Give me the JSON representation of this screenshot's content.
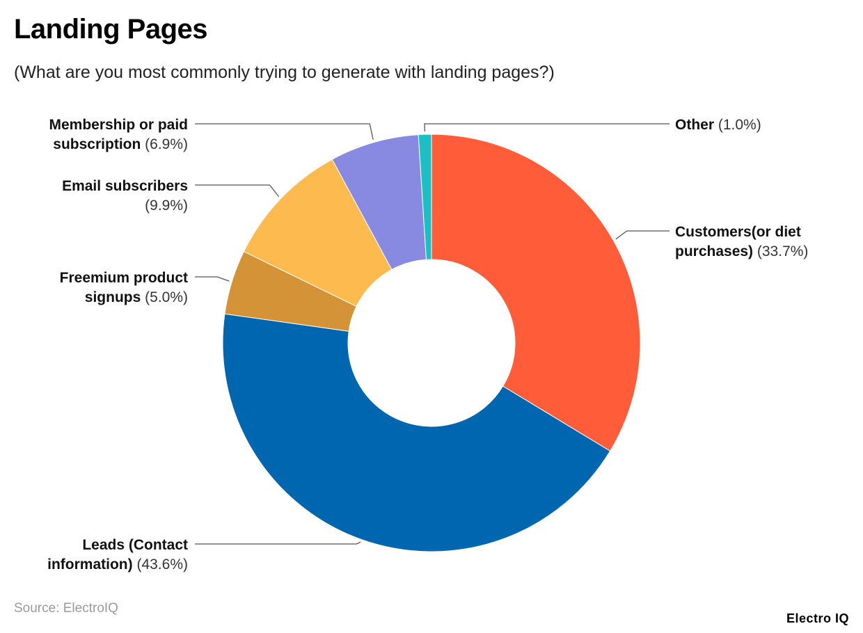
{
  "title": "Landing Pages",
  "subtitle": "(What are you most commonly trying to generate with landing pages?)",
  "source": "Source: ElectroIQ",
  "brand": "Electro IQ",
  "chart_data": {
    "type": "pie",
    "variant": "donut",
    "title": "Landing Pages",
    "subtitle": "(What are you most commonly trying to generate with landing pages?)",
    "start": "top (12 o'clock), clockwise",
    "slices": [
      {
        "label": "Customers(or diet purchases)",
        "label_lines": [
          "Customers(or diet",
          "purchases)"
        ],
        "value": 33.7,
        "value_label": "(33.7%)",
        "color": "#FF5C3A",
        "label_side": "right"
      },
      {
        "label": "Leads (Contact information)",
        "label_lines": [
          "Leads (Contact",
          "information)"
        ],
        "value": 43.6,
        "value_label": "(43.6%)",
        "color": "#0066B0",
        "label_side": "left"
      },
      {
        "label": "Freemium product signups",
        "label_lines": [
          "Freemium product",
          "signups"
        ],
        "value": 5.0,
        "value_label": "(5.0%)",
        "color": "#D49336",
        "label_side": "left"
      },
      {
        "label": "Email subscribers",
        "label_lines": [
          "Email subscribers"
        ],
        "value": 9.9,
        "value_label": "(9.9%)",
        "color": "#FDBB4F",
        "label_side": "left"
      },
      {
        "label": "Membership or paid subscription",
        "label_lines": [
          "Membership or paid",
          "subscription"
        ],
        "value": 6.9,
        "value_label": "(6.9%)",
        "color": "#8889E0",
        "label_side": "left"
      },
      {
        "label": "Other",
        "label_lines": [
          "Other"
        ],
        "value": 1.0,
        "value_label": "(1.0%)",
        "color": "#1BBFC4",
        "label_side": "right"
      }
    ]
  }
}
